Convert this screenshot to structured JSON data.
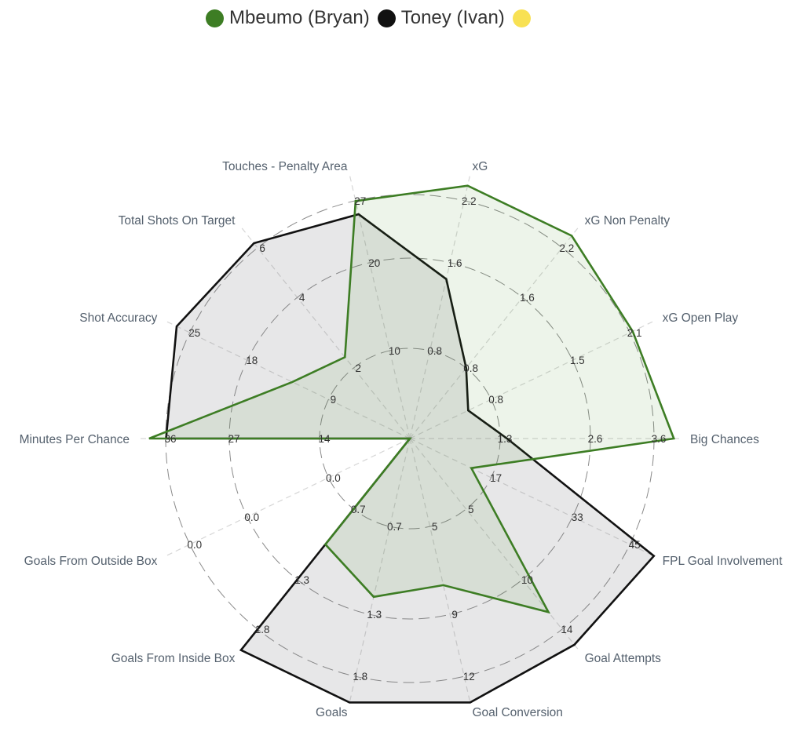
{
  "chart_data": {
    "type": "radar",
    "legend_position": "top",
    "axes": [
      {
        "label": "Big Chances",
        "ticks": [
          "1.3",
          "2.6",
          "3.6"
        ],
        "max": 3.9
      },
      {
        "label": "xG Open Play",
        "ticks": [
          "0.8",
          "1.5",
          "2.1"
        ],
        "max": 2.3
      },
      {
        "label": "xG Non Penalty",
        "ticks": [
          "0.8",
          "1.6",
          "2.2"
        ],
        "max": 2.4
      },
      {
        "label": "xG",
        "ticks": [
          "0.8",
          "1.6",
          "2.2"
        ],
        "max": 2.4
      },
      {
        "label": "Touches - Penalty Area",
        "ticks": [
          "10",
          "20",
          "27"
        ],
        "max": 30
      },
      {
        "label": "Total Shots On Target",
        "ticks": [
          "2",
          "4",
          "6"
        ],
        "max": 6.5
      },
      {
        "label": "Shot Accuracy",
        "ticks": [
          "9",
          "18",
          "25"
        ],
        "max": 27
      },
      {
        "label": "Minutes Per Chance",
        "ticks": [
          "14",
          "27",
          "36"
        ],
        "max": 40
      },
      {
        "label": "Goals From Outside Box",
        "ticks": [
          "0.0",
          "0.0",
          "0.0"
        ],
        "max": 1
      },
      {
        "label": "Goals From Inside Box",
        "ticks": [
          "0.7",
          "1.3",
          "1.8"
        ],
        "max": 2.0
      },
      {
        "label": "Goals",
        "ticks": [
          "0.7",
          "1.3",
          "1.8"
        ],
        "max": 2.0
      },
      {
        "label": "Goal Conversion",
        "ticks": [
          "5",
          "9",
          "12"
        ],
        "max": 13.5
      },
      {
        "label": "Goal Attempts",
        "ticks": [
          "5",
          "10",
          "14"
        ],
        "max": 15.6
      },
      {
        "label": "FPL Goal Involvement",
        "ticks": [
          "17",
          "33",
          "45"
        ],
        "max": 50
      }
    ],
    "series": [
      {
        "name": "Mbeumo (Bryan)",
        "color": "#3d7d24",
        "fill": "rgba(80,150,50,0.10)",
        "values": [
          3.8,
          2.1,
          2.3,
          2.3,
          27,
          2.5,
          13,
          38.5,
          0,
          1.0,
          1.2,
          7.5,
          12.8,
          12.6
        ]
      },
      {
        "name": "Toney (Ivan)",
        "color": "#111111",
        "fill": "rgba(120,120,130,0.18)",
        "values": [
          1.4,
          0.55,
          0.8,
          1.45,
          25.5,
          6.0,
          25.8,
          36,
          0,
          2.0,
          2.0,
          13.5,
          15.2,
          50
        ]
      },
      {
        "name": "",
        "color": "#f8e153",
        "fill": "none",
        "values": []
      }
    ]
  }
}
